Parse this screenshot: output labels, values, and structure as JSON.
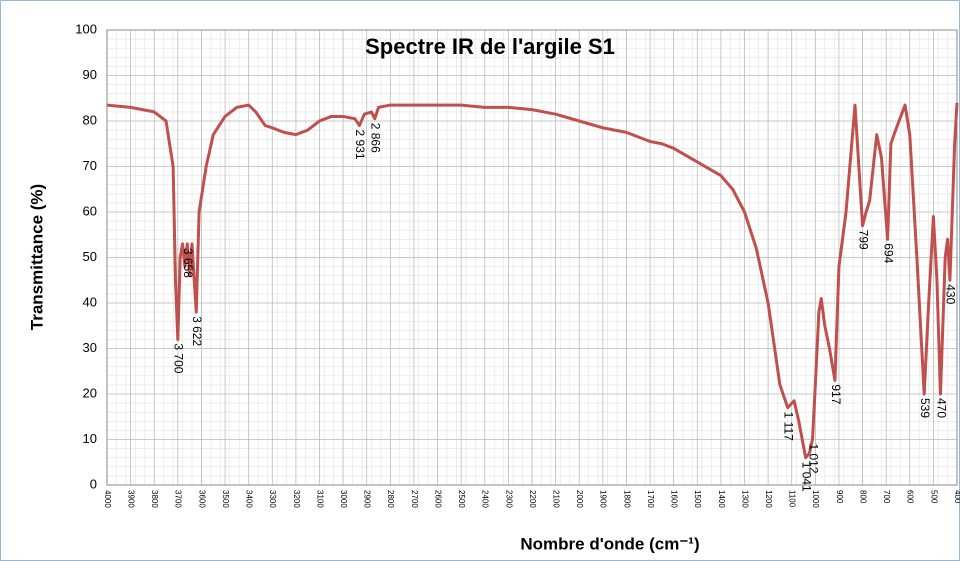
{
  "chart_data": {
    "type": "line",
    "title": "Spectre IR de l'argile S1",
    "y_label": "Transmittance (%)",
    "x_label": "Nombre d'onde (cm⁻¹)",
    "x": [
      4000,
      3900,
      3800,
      3750,
      3720,
      3710,
      3700,
      3690,
      3680,
      3670,
      3660,
      3650,
      3640,
      3622,
      3610,
      3580,
      3550,
      3500,
      3450,
      3400,
      3370,
      3330,
      3300,
      3250,
      3200,
      3150,
      3100,
      3050,
      3000,
      2950,
      2931,
      2910,
      2880,
      2866,
      2850,
      2800,
      2500,
      2400,
      2300,
      2200,
      2100,
      2000,
      1900,
      1850,
      1800,
      1700,
      1650,
      1600,
      1500,
      1450,
      1400,
      1350,
      1300,
      1250,
      1200,
      1150,
      1117,
      1090,
      1070,
      1041,
      1025,
      1012,
      1000,
      985,
      975,
      960,
      940,
      917,
      900,
      870,
      832,
      800,
      785,
      770,
      740,
      720,
      694,
      680,
      660,
      620,
      600,
      570,
      539,
      520,
      500,
      485,
      470,
      450,
      440,
      430,
      410,
      400
    ],
    "series": [
      {
        "name": "S1",
        "color": "#c0504d",
        "values": [
          83.5,
          83,
          82,
          80,
          70,
          45,
          32,
          50,
          53,
          48,
          53,
          46,
          53,
          38,
          60,
          70,
          77,
          81,
          83,
          83.5,
          82,
          79,
          78.5,
          77.5,
          77,
          78,
          80,
          81,
          81,
          80.5,
          79,
          81.5,
          82,
          80.5,
          83,
          83.5,
          83.5,
          83,
          83,
          82.5,
          81.5,
          80,
          78.5,
          78,
          77.5,
          75.5,
          75,
          74,
          71,
          69.5,
          68,
          65,
          60,
          52,
          40,
          22,
          17,
          18.5,
          14,
          6,
          7,
          10,
          22,
          38,
          41,
          35,
          30,
          23,
          48,
          60,
          83.5,
          57,
          60,
          62.5,
          77,
          72,
          54,
          75,
          78,
          83.5,
          77,
          50,
          20,
          40,
          59,
          45,
          20,
          50,
          54,
          45,
          75,
          84
        ]
      }
    ],
    "annotations": [
      {
        "label": "3 700",
        "x": 3700
      },
      {
        "label": "3 658",
        "x": 3660
      },
      {
        "label": "3 622",
        "x": 3622
      },
      {
        "label": "2 931",
        "x": 2931
      },
      {
        "label": "2 866",
        "x": 2866
      },
      {
        "label": "1 117",
        "x": 1117
      },
      {
        "label": "1 041",
        "x": 1041
      },
      {
        "label": "1 012",
        "x": 1012
      },
      {
        "label": "917",
        "x": 917
      },
      {
        "label": "799",
        "x": 800
      },
      {
        "label": "694",
        "x": 694
      },
      {
        "label": "539",
        "x": 539
      },
      {
        "label": "470",
        "x": 470
      },
      {
        "label": "430",
        "x": 430
      }
    ],
    "xlim": [
      4000,
      400
    ],
    "ylim": [
      0,
      100
    ],
    "xticks": [
      4000,
      3900,
      3800,
      3700,
      3600,
      3500,
      3400,
      3300,
      3200,
      3100,
      3000,
      2900,
      2800,
      2700,
      2600,
      2500,
      2400,
      2300,
      2200,
      2100,
      2000,
      1900,
      1800,
      1700,
      1600,
      1500,
      1400,
      1300,
      1200,
      1100,
      1000,
      900,
      800,
      700,
      600,
      500,
      400
    ],
    "yticks": [
      0,
      10,
      20,
      30,
      40,
      50,
      60,
      70,
      80,
      90,
      100
    ],
    "grid": true
  }
}
